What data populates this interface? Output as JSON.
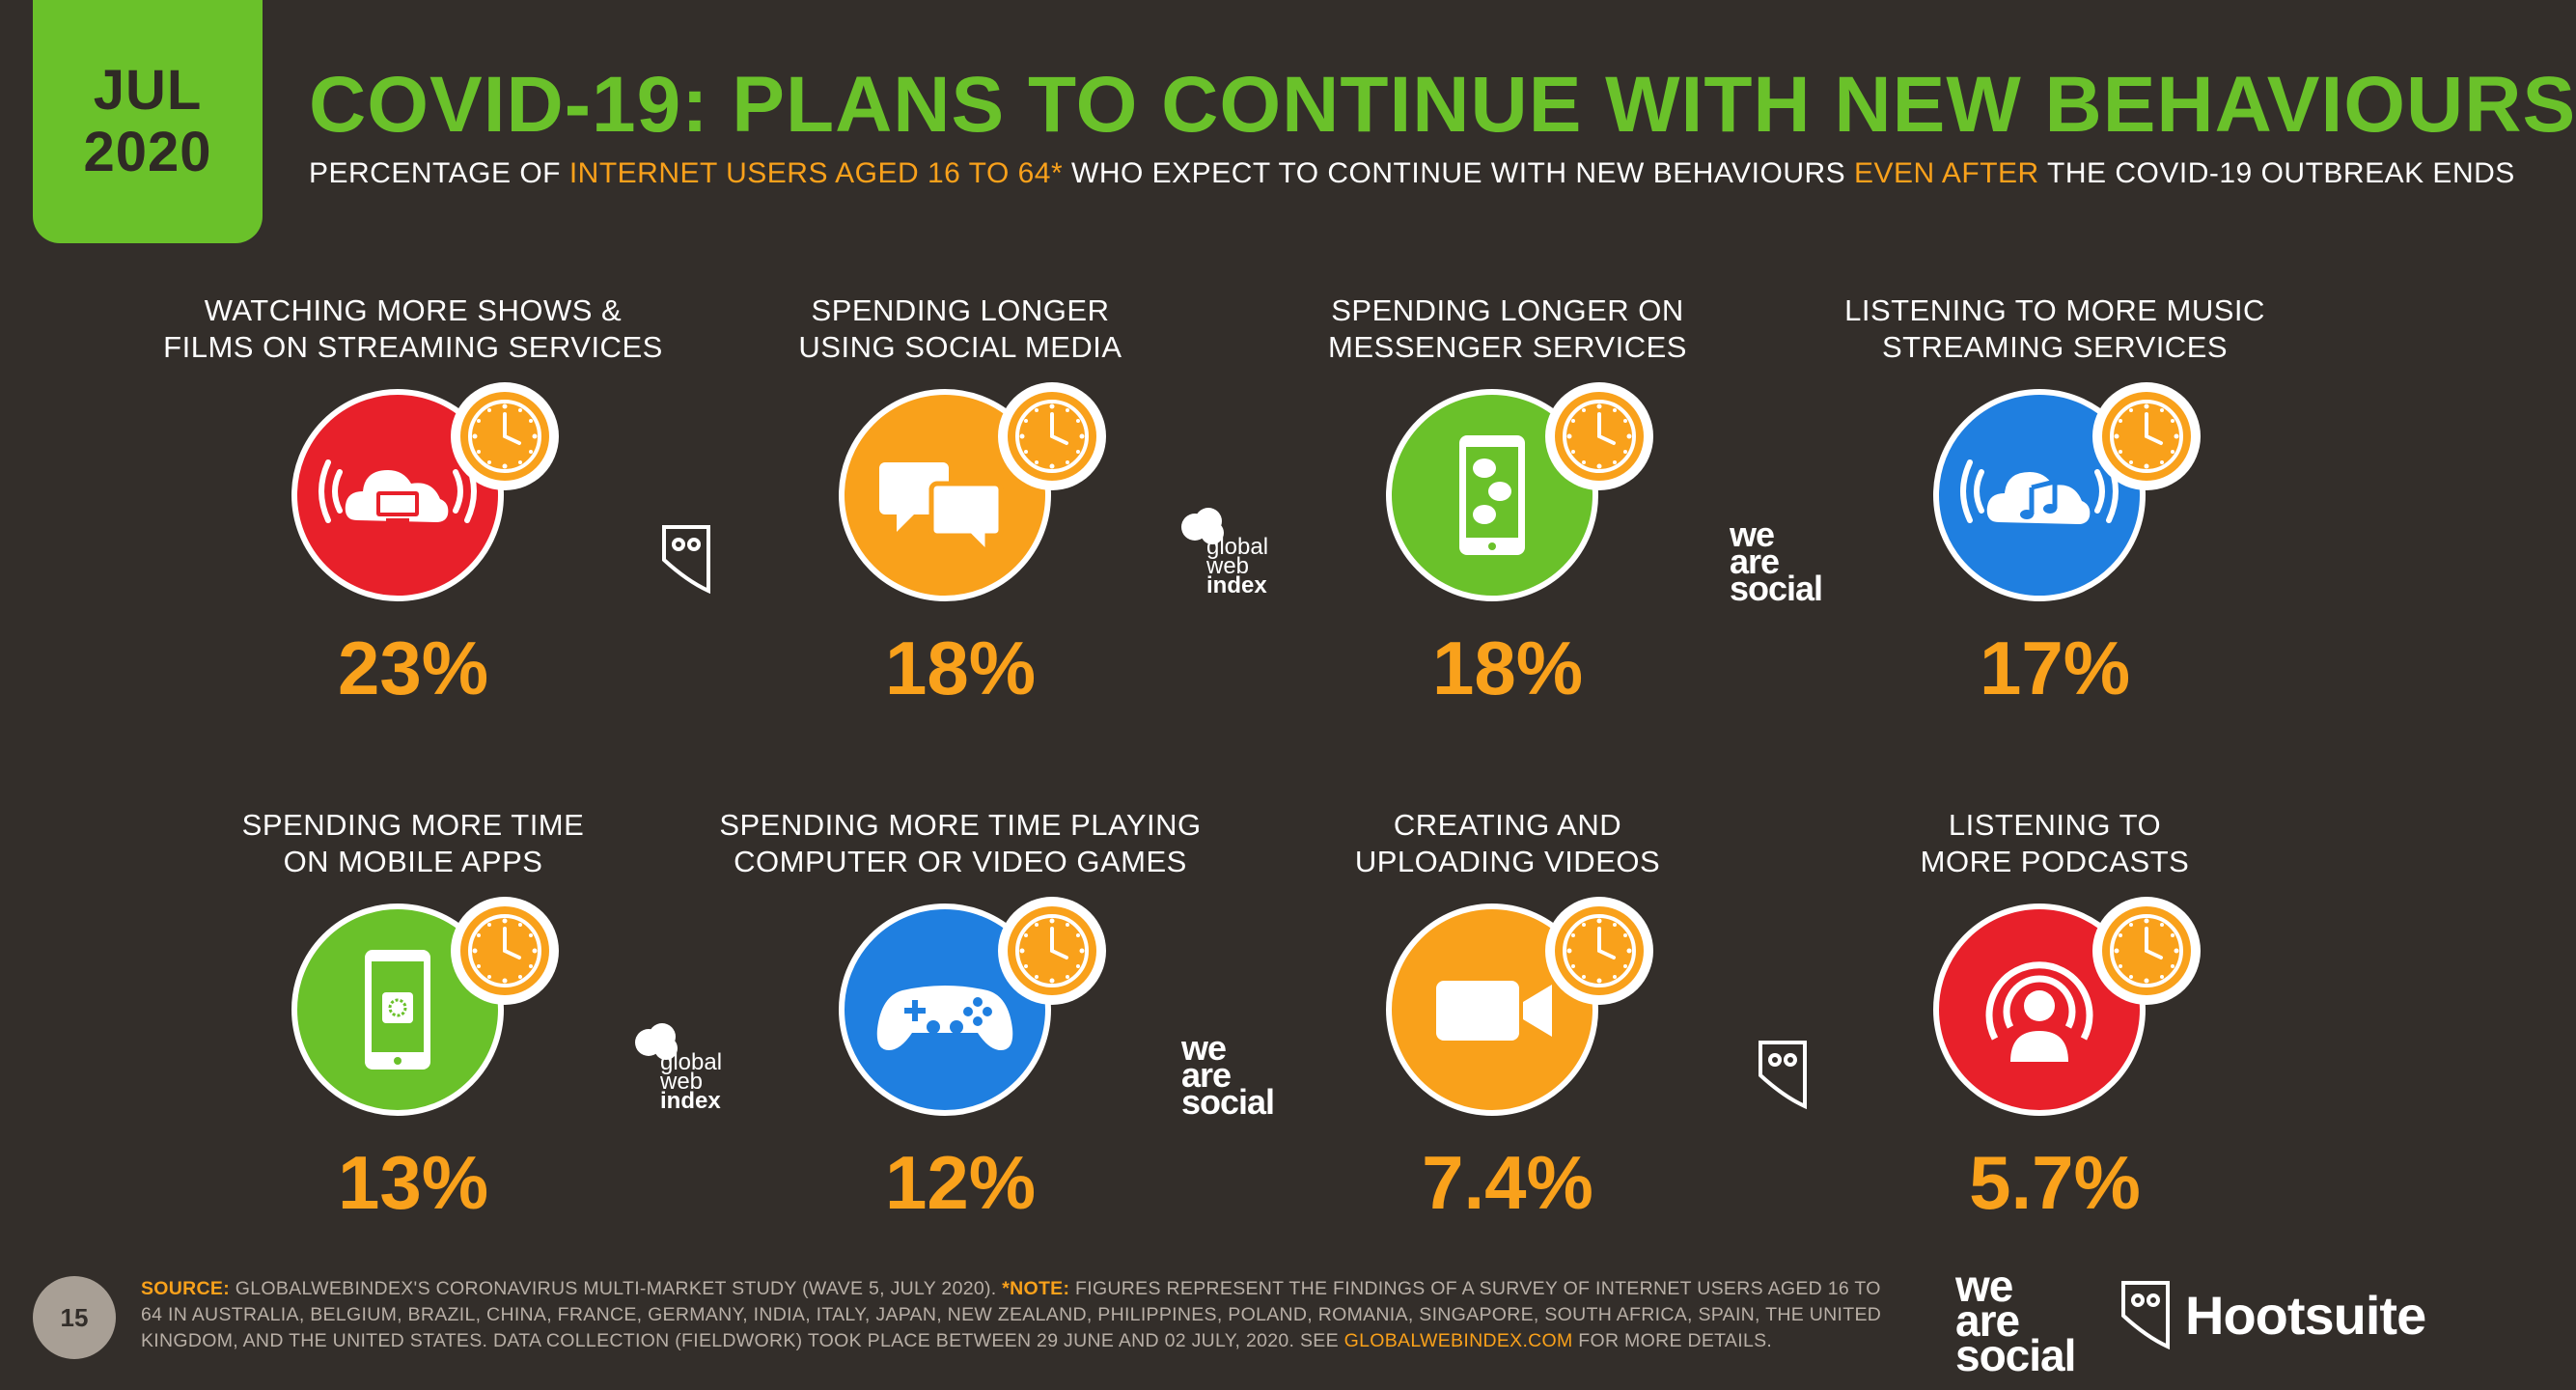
{
  "header": {
    "date_month": "JUL",
    "date_year": "2020",
    "title": "COVID-19: PLANS TO CONTINUE WITH NEW BEHAVIOURS",
    "subtitle_parts": [
      "PERCENTAGE OF ",
      "INTERNET USERS AGED 16 TO 64*",
      " WHO EXPECT TO CONTINUE WITH NEW BEHAVIOURS ",
      "EVEN AFTER",
      " THE COVID-19 OUTBREAK ENDS"
    ]
  },
  "colors": {
    "background": "#332e2a",
    "accent_green": "#6ac12a",
    "accent_orange": "#f9a11b",
    "red": "#e8202a",
    "blue": "#1f7fe0"
  },
  "items": [
    {
      "label": [
        "WATCHING MORE SHOWS &",
        "FILMS ON STREAMING SERVICES"
      ],
      "value": "23%",
      "icon": "streaming-cloud-tv-icon",
      "color": "#e8202a"
    },
    {
      "label": [
        "SPENDING LONGER",
        "USING SOCIAL MEDIA"
      ],
      "value": "18%",
      "icon": "chat-bubbles-icon",
      "color": "#f9a11b"
    },
    {
      "label": [
        "SPENDING LONGER ON",
        "MESSENGER SERVICES"
      ],
      "value": "18%",
      "icon": "phone-messages-icon",
      "color": "#6ac12a"
    },
    {
      "label": [
        "LISTENING TO MORE MUSIC",
        "STREAMING SERVICES"
      ],
      "value": "17%",
      "icon": "music-cloud-icon",
      "color": "#1f7fe0"
    },
    {
      "label": [
        "SPENDING MORE TIME",
        "ON MOBILE APPS"
      ],
      "value": "13%",
      "icon": "mobile-app-icon",
      "color": "#6ac12a"
    },
    {
      "label": [
        "SPENDING MORE TIME PLAYING",
        "COMPUTER OR VIDEO GAMES"
      ],
      "value": "12%",
      "icon": "gamepad-icon",
      "color": "#1f7fe0"
    },
    {
      "label": [
        "CREATING AND",
        "UPLOADING VIDEOS"
      ],
      "value": "7.4%",
      "icon": "video-camera-icon",
      "color": "#f9a11b"
    },
    {
      "label": [
        "LISTENING TO",
        "MORE PODCASTS"
      ],
      "value": "5.7%",
      "icon": "podcast-icon",
      "color": "#e8202a"
    }
  ],
  "logos": {
    "gwi": [
      "global",
      "web",
      "index"
    ],
    "wearesocial": [
      "we",
      "are",
      "social"
    ],
    "hootsuite": "Hootsuite"
  },
  "footer": {
    "page_number": "15",
    "source_label": "SOURCE:",
    "source_text": " GLOBALWEBINDEX'S CORONAVIRUS MULTI-MARKET STUDY (WAVE 5, JULY 2020). ",
    "note_label": "*NOTE:",
    "note_text": " FIGURES REPRESENT THE FINDINGS OF A SURVEY OF INTERNET USERS AGED 16 TO 64 IN AUSTRALIA, BELGIUM, BRAZIL, CHINA, FRANCE, GERMANY, INDIA, ITALY, JAPAN, NEW ZEALAND, PHILIPPINES, POLAND, ROMANIA, SINGAPORE, SOUTH AFRICA, SPAIN, THE UNITED KINGDOM, AND THE UNITED STATES. DATA COLLECTION (FIELDWORK) TOOK PLACE BETWEEN 29 JUNE AND 02 JULY, 2020. SEE ",
    "link_text": "GLOBALWEBINDEX.COM",
    "end_text": " FOR MORE DETAILS."
  }
}
